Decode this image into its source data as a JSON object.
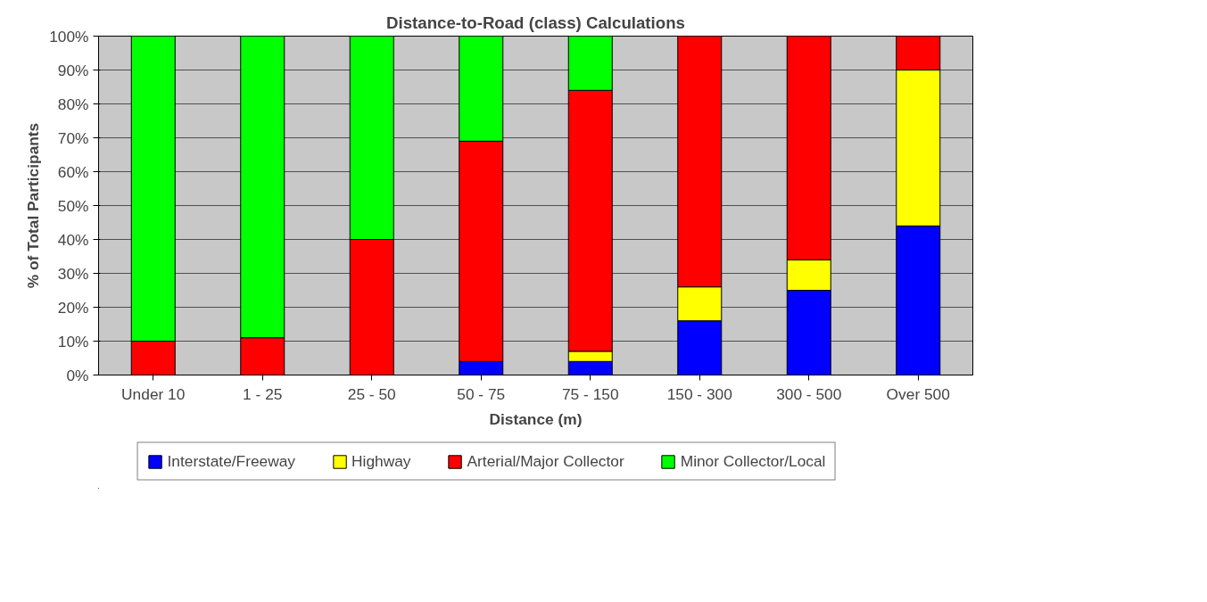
{
  "chart_data": {
    "type": "bar",
    "title": "Distance-to-Road (class) Calculations",
    "xlabel": "Distance (m)",
    "ylabel": "% of Total Participants",
    "categories": [
      "Under 10",
      "1 - 25",
      "25 - 50",
      "50 - 75",
      "75 - 150",
      "150 - 300",
      "300 - 500",
      "Over 500"
    ],
    "stacked": true,
    "series": [
      {
        "name": "Interstate/Freeway",
        "color": "#0000ff",
        "values": [
          0,
          0,
          0,
          4,
          4,
          16,
          25,
          44
        ]
      },
      {
        "name": "Highway",
        "color": "#ffff00",
        "values": [
          0,
          0,
          0,
          0,
          3,
          10,
          9,
          46
        ]
      },
      {
        "name": "Arterial/Major Collector",
        "color": "#ff0000",
        "values": [
          10,
          11,
          40,
          65,
          77,
          74,
          66,
          10
        ]
      },
      {
        "name": "Minor Collector/Local",
        "color": "#00ff00",
        "values": [
          90,
          89,
          60,
          31,
          16,
          0,
          0,
          0
        ]
      }
    ],
    "ylim": [
      0,
      100
    ],
    "yticks": [
      {
        "value": 0,
        "label": "0%"
      },
      {
        "value": 10,
        "label": "10%"
      },
      {
        "value": 20,
        "label": "20%"
      },
      {
        "value": 30,
        "label": "30%"
      },
      {
        "value": 40,
        "label": "40%"
      },
      {
        "value": 50,
        "label": "50%"
      },
      {
        "value": 60,
        "label": "60%"
      },
      {
        "value": 70,
        "label": "70%"
      },
      {
        "value": 80,
        "label": "80%"
      },
      {
        "value": 90,
        "label": "90%"
      },
      {
        "value": 100,
        "label": "100%"
      }
    ],
    "grid": "y",
    "legend": "bottom"
  }
}
